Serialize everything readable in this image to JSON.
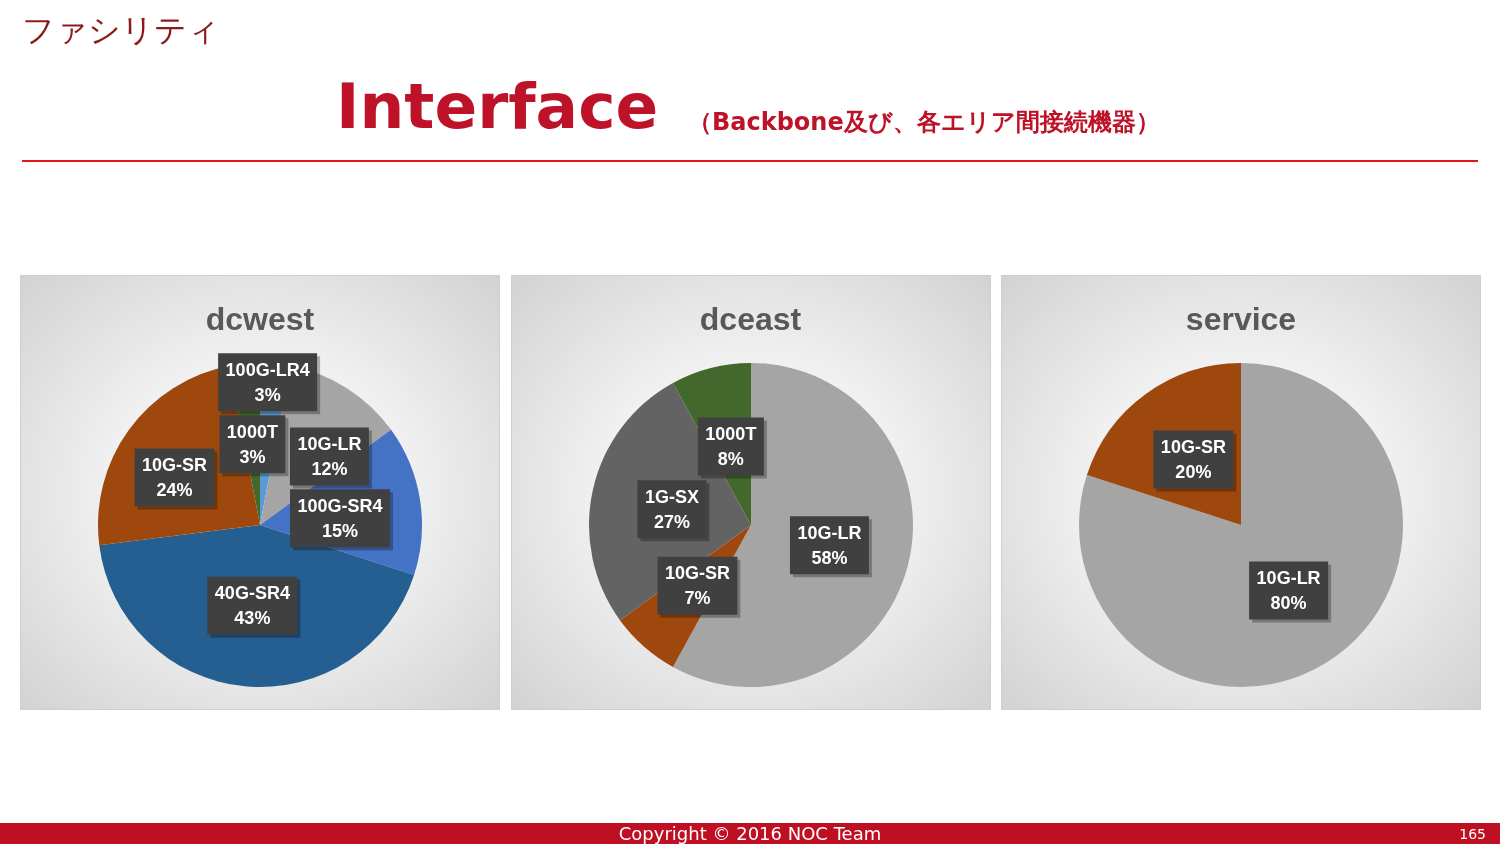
{
  "chart_data": [
    {
      "type": "other",
      "title": "Interface",
      "subtitle": "（Backbone及び、各エリア間接続機器）",
      "annotations": [
        "ファシリティ",
        "Copyright © 2016 NOC Team",
        "165"
      ]
    },
    {
      "type": "pie",
      "title": "dcwest",
      "categories": [
        "100G-LR4",
        "10G-LR",
        "100G-SR4",
        "40G-SR4",
        "10G-SR",
        "1000T"
      ],
      "values": [
        3,
        12,
        15,
        43,
        24,
        3
      ],
      "value_labels": [
        "3%",
        "12%",
        "15%",
        "43%",
        "24%",
        "3%"
      ],
      "colors": [
        "#5b9bd5",
        "#a5a5a5",
        "#4472c4",
        "#255e91",
        "#9e480e",
        "#43682b"
      ]
    },
    {
      "type": "pie",
      "title": "dceast",
      "categories": [
        "10G-LR",
        "10G-SR",
        "1G-SX",
        "1000T"
      ],
      "values": [
        58,
        7,
        27,
        8
      ],
      "value_labels": [
        "58%",
        "7%",
        "27%",
        "8%"
      ],
      "colors": [
        "#a5a5a5",
        "#9e480e",
        "#636363",
        "#43682b"
      ]
    },
    {
      "type": "pie",
      "title": "service",
      "categories": [
        "10G-LR",
        "10G-SR"
      ],
      "values": [
        80,
        20
      ],
      "value_labels": [
        "80%",
        "20%"
      ],
      "colors": [
        "#a5a5a5",
        "#9e480e"
      ]
    }
  ]
}
